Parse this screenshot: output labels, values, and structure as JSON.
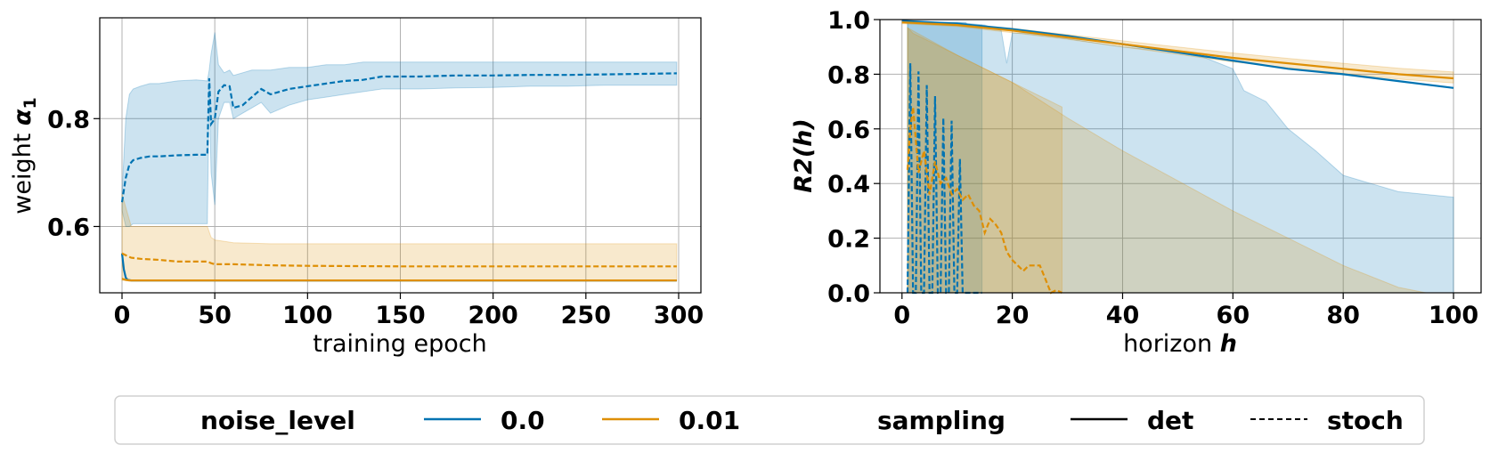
{
  "colors": {
    "noise_0": "#0173b2",
    "noise_001": "#de8f05",
    "neutral": "#000000"
  },
  "chart_data": [
    {
      "type": "line",
      "xlabel": "training epoch",
      "ylabel_prefix": "weight",
      "ylabel_symbol": "α",
      "ylabel_sub": "1",
      "xlim": [
        -12,
        312
      ],
      "ylim": [
        0.477,
        0.987
      ],
      "xticks": [
        0,
        50,
        100,
        150,
        200,
        250,
        300
      ],
      "xtick_labels": [
        "0",
        "50",
        "100",
        "150",
        "200",
        "250",
        "300"
      ],
      "yticks": [
        0.6,
        0.8
      ],
      "ytick_labels": [
        "0.6",
        "0.8"
      ],
      "grid": true,
      "series": [
        {
          "noise_level": "0.0",
          "sampling": "stoch",
          "style": "dashed",
          "x": [
            0,
            2,
            4,
            6,
            10,
            15,
            20,
            30,
            40,
            46,
            47,
            48,
            50,
            52,
            55,
            58,
            60,
            65,
            70,
            75,
            80,
            90,
            100,
            110,
            120,
            130,
            140,
            160,
            180,
            200,
            220,
            240,
            260,
            280,
            299
          ],
          "y": [
            0.645,
            0.69,
            0.715,
            0.723,
            0.727,
            0.73,
            0.73,
            0.732,
            0.733,
            0.733,
            0.875,
            0.79,
            0.8,
            0.85,
            0.862,
            0.86,
            0.82,
            0.825,
            0.84,
            0.855,
            0.845,
            0.855,
            0.86,
            0.865,
            0.87,
            0.872,
            0.878,
            0.878,
            0.88,
            0.88,
            0.881,
            0.881,
            0.882,
            0.883,
            0.884
          ],
          "band_upper": [
            0.66,
            0.8,
            0.845,
            0.855,
            0.86,
            0.865,
            0.865,
            0.87,
            0.872,
            0.87,
            0.89,
            0.92,
            0.96,
            0.9,
            0.885,
            0.89,
            0.88,
            0.885,
            0.89,
            0.89,
            0.89,
            0.895,
            0.895,
            0.9,
            0.9,
            0.905,
            0.905,
            0.905,
            0.905,
            0.905,
            0.905,
            0.905,
            0.905,
            0.905,
            0.905
          ],
          "band_lower": [
            0.63,
            0.6,
            0.6,
            0.605,
            0.605,
            0.605,
            0.605,
            0.605,
            0.605,
            0.605,
            0.86,
            0.7,
            0.64,
            0.8,
            0.83,
            0.83,
            0.8,
            0.81,
            0.82,
            0.83,
            0.81,
            0.825,
            0.835,
            0.84,
            0.845,
            0.85,
            0.855,
            0.855,
            0.857,
            0.858,
            0.86,
            0.86,
            0.862,
            0.862,
            0.862
          ]
        },
        {
          "noise_level": "0.0",
          "sampling": "det",
          "style": "solid",
          "x": [
            0,
            1,
            2,
            3,
            5,
            299
          ],
          "y": [
            0.55,
            0.52,
            0.505,
            0.501,
            0.5,
            0.5
          ],
          "band_upper": [
            0.55,
            0.52,
            0.505,
            0.501,
            0.5,
            0.5
          ],
          "band_lower": [
            0.55,
            0.52,
            0.505,
            0.501,
            0.5,
            0.5
          ]
        },
        {
          "noise_level": "0.01",
          "sampling": "stoch",
          "style": "dashed",
          "x": [
            0,
            5,
            10,
            20,
            30,
            40,
            46,
            48,
            50,
            60,
            80,
            100,
            150,
            200,
            250,
            299
          ],
          "y": [
            0.55,
            0.542,
            0.54,
            0.538,
            0.535,
            0.535,
            0.535,
            0.532,
            0.53,
            0.53,
            0.528,
            0.527,
            0.526,
            0.526,
            0.526,
            0.526
          ],
          "band_upper": [
            0.66,
            0.6,
            0.6,
            0.6,
            0.6,
            0.6,
            0.6,
            0.58,
            0.575,
            0.57,
            0.568,
            0.568,
            0.568,
            0.568,
            0.568,
            0.568
          ],
          "band_lower": [
            0.5,
            0.5,
            0.5,
            0.5,
            0.5,
            0.5,
            0.5,
            0.5,
            0.5,
            0.5,
            0.5,
            0.5,
            0.5,
            0.5,
            0.5,
            0.5
          ]
        },
        {
          "noise_level": "0.01",
          "sampling": "det",
          "style": "solid",
          "x": [
            0,
            2,
            4,
            299
          ],
          "y": [
            0.503,
            0.501,
            0.5,
            0.5
          ],
          "band_upper": [
            0.503,
            0.501,
            0.5,
            0.5
          ],
          "band_lower": [
            0.503,
            0.501,
            0.5,
            0.5
          ]
        }
      ]
    },
    {
      "type": "line",
      "xlabel_prefix": "horizon",
      "xlabel_symbol": "h",
      "ylabel": "R2(h)",
      "xlim": [
        -4,
        105
      ],
      "ylim": [
        0.0,
        1.0
      ],
      "xticks": [
        0,
        20,
        40,
        60,
        80,
        100
      ],
      "xtick_labels": [
        "0",
        "20",
        "40",
        "60",
        "80",
        "100"
      ],
      "yticks": [
        0.0,
        0.2,
        0.4,
        0.6,
        0.8,
        1.0
      ],
      "ytick_labels": [
        "0.0",
        "0.2",
        "0.4",
        "0.6",
        "0.8",
        "1.0"
      ],
      "grid": true,
      "series": [
        {
          "noise_level": "0.0",
          "sampling": "stoch",
          "style": "dashed",
          "x": [
            1,
            1.5,
            2,
            2.5,
            3,
            3.5,
            4,
            4.5,
            5,
            5.5,
            6,
            6.5,
            7,
            7.5,
            8,
            8.5,
            9,
            9.5,
            10,
            10.5,
            11,
            11.5,
            12,
            12.5,
            13,
            13.5,
            14,
            14.5
          ],
          "y": [
            0.0,
            0.84,
            0.0,
            0.0,
            0.81,
            0.0,
            0.0,
            0.76,
            0.0,
            0.0,
            0.72,
            0.0,
            0.0,
            0.64,
            0.0,
            0.0,
            0.63,
            0.0,
            0.0,
            0.49,
            0.0,
            0.0,
            0.0,
            0.0,
            0.0,
            0.0,
            0.0,
            0.0
          ],
          "band_upper": [
            0.99,
            0.99,
            0.99,
            0.99,
            0.99,
            0.99,
            0.99,
            0.99,
            0.99,
            0.99,
            0.99,
            0.99,
            0.99,
            0.99,
            0.99,
            0.99,
            0.99,
            0.99,
            0.99,
            0.99,
            0.99,
            0.99,
            0.98,
            0.98,
            0.98,
            0.98,
            0.98,
            0.98
          ],
          "band_lower": [
            0,
            0,
            0,
            0,
            0,
            0,
            0,
            0,
            0,
            0,
            0,
            0,
            0,
            0,
            0,
            0,
            0,
            0,
            0,
            0,
            0,
            0,
            0,
            0,
            0,
            0,
            0,
            0
          ]
        },
        {
          "noise_level": "0.0",
          "sampling": "stoch-band",
          "style": "none",
          "x": [
            1,
            10,
            15,
            18,
            19,
            20,
            22,
            30,
            40,
            50,
            55,
            60,
            62,
            66,
            70,
            75,
            80,
            85,
            90,
            95,
            100
          ],
          "y": [
            0.99,
            0.99,
            0.98,
            0.96,
            0.84,
            0.95,
            0.95,
            0.93,
            0.9,
            0.88,
            0.86,
            0.82,
            0.74,
            0.7,
            0.6,
            0.52,
            0.43,
            0.4,
            0.37,
            0.36,
            0.35
          ],
          "band_upper": [
            0.99,
            0.99,
            0.98,
            0.96,
            0.84,
            0.95,
            0.95,
            0.93,
            0.9,
            0.88,
            0.86,
            0.82,
            0.74,
            0.7,
            0.6,
            0.52,
            0.43,
            0.4,
            0.37,
            0.36,
            0.35
          ],
          "band_lower": [
            0,
            0,
            0,
            0,
            0,
            0,
            0,
            0,
            0,
            0,
            0,
            0,
            0,
            0,
            0,
            0,
            0,
            0,
            0,
            0,
            0
          ]
        },
        {
          "noise_level": "0.01",
          "sampling": "stoch",
          "style": "dashed",
          "x": [
            1,
            1.5,
            2,
            3,
            4,
            5,
            6,
            7,
            8,
            9,
            10,
            11,
            12,
            13,
            14,
            15,
            16,
            17,
            18,
            19,
            20,
            21,
            22,
            23,
            24,
            25,
            26,
            27,
            28,
            29
          ],
          "y": [
            0.45,
            0.6,
            0.68,
            0.44,
            0.52,
            0.36,
            0.48,
            0.4,
            0.42,
            0.36,
            0.38,
            0.34,
            0.36,
            0.32,
            0.3,
            0.22,
            0.27,
            0.25,
            0.22,
            0.15,
            0.12,
            0.1,
            0.08,
            0.1,
            0.1,
            0.1,
            0.05,
            0.0,
            0.01,
            0.0
          ],
          "band_upper": [
            0.97,
            0.96,
            0.95,
            0.94,
            0.93,
            0.92,
            0.91,
            0.9,
            0.89,
            0.88,
            0.87,
            0.86,
            0.85,
            0.84,
            0.83,
            0.82,
            0.81,
            0.8,
            0.79,
            0.78,
            0.77,
            0.76,
            0.75,
            0.74,
            0.73,
            0.72,
            0.71,
            0.7,
            0.69,
            0.68
          ],
          "band_lower": [
            0,
            0,
            0,
            0,
            0,
            0,
            0,
            0,
            0,
            0,
            0,
            0,
            0,
            0,
            0,
            0,
            0,
            0,
            0,
            0,
            0,
            0,
            0,
            0,
            0,
            0,
            0,
            0,
            0,
            0
          ]
        },
        {
          "noise_level": "0.01",
          "sampling": "stoch-band",
          "style": "none",
          "x": [
            1,
            10,
            20,
            30,
            40,
            50,
            60,
            70,
            80,
            90,
            95
          ],
          "y": [
            0.97,
            0.87,
            0.77,
            0.64,
            0.52,
            0.41,
            0.3,
            0.2,
            0.1,
            0.02,
            0.0
          ],
          "band_upper": [
            0.97,
            0.87,
            0.77,
            0.64,
            0.52,
            0.41,
            0.3,
            0.2,
            0.1,
            0.02,
            0.0
          ],
          "band_lower": [
            0,
            0,
            0,
            0,
            0,
            0,
            0,
            0,
            0,
            0,
            0
          ]
        },
        {
          "noise_level": "0.0",
          "sampling": "det",
          "style": "solid",
          "x": [
            0,
            10,
            20,
            30,
            40,
            50,
            60,
            70,
            80,
            90,
            100
          ],
          "y": [
            0.995,
            0.985,
            0.965,
            0.94,
            0.91,
            0.88,
            0.85,
            0.82,
            0.8,
            0.775,
            0.75
          ],
          "band_upper": [
            0.995,
            0.985,
            0.965,
            0.94,
            0.91,
            0.88,
            0.85,
            0.82,
            0.8,
            0.775,
            0.75
          ],
          "band_lower": [
            0.995,
            0.985,
            0.965,
            0.94,
            0.91,
            0.88,
            0.85,
            0.82,
            0.8,
            0.775,
            0.75
          ]
        },
        {
          "noise_level": "0.01",
          "sampling": "det",
          "style": "solid",
          "x": [
            0,
            10,
            20,
            30,
            40,
            50,
            60,
            70,
            80,
            90,
            100
          ],
          "y": [
            0.99,
            0.98,
            0.96,
            0.935,
            0.91,
            0.885,
            0.86,
            0.84,
            0.82,
            0.8,
            0.785
          ],
          "band_upper": [
            0.995,
            0.985,
            0.968,
            0.945,
            0.922,
            0.9,
            0.878,
            0.858,
            0.84,
            0.822,
            0.808
          ],
          "band_lower": [
            0.985,
            0.975,
            0.952,
            0.928,
            0.9,
            0.873,
            0.845,
            0.824,
            0.803,
            0.782,
            0.768
          ]
        }
      ]
    }
  ],
  "legend": {
    "placement": "bottom",
    "noise_title": "noise_level",
    "noise_items": [
      {
        "label": "0.0",
        "color": "#0173b2"
      },
      {
        "label": "0.01",
        "color": "#de8f05"
      }
    ],
    "sampling_title": "sampling",
    "sampling_items": [
      {
        "label": "det",
        "style": "solid"
      },
      {
        "label": "stoch",
        "style": "dashed"
      }
    ]
  }
}
